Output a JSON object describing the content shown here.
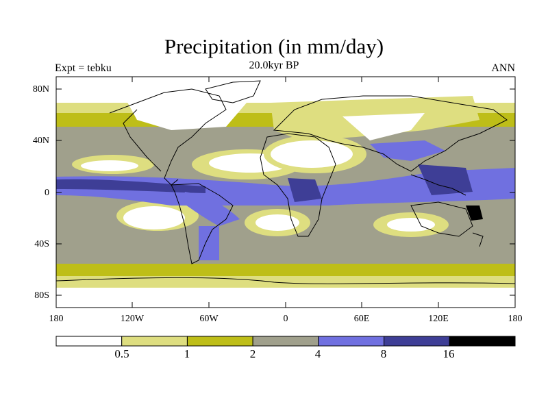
{
  "title": "Precipitation (in mm/day)",
  "experiment_label": "Expt = tebku",
  "time_label": "20.0kyr BP",
  "season_label": "ANN",
  "map": {
    "lat_ticks": [
      "80N",
      "40N",
      "0",
      "40S",
      "80S"
    ],
    "lon_ticks": [
      "180",
      "120W",
      "60W",
      "0",
      "60E",
      "120E",
      "180"
    ]
  },
  "colorbar": {
    "levels": [
      "0.5",
      "1",
      "2",
      "4",
      "8",
      "16"
    ],
    "colors": [
      "#ffffff",
      "#dede80",
      "#bebe18",
      "#a0a08c",
      "#7070e0",
      "#3e3e96",
      "#000000"
    ]
  },
  "colors": {
    "land_outline": "#000000",
    "frame": "#000000"
  }
}
